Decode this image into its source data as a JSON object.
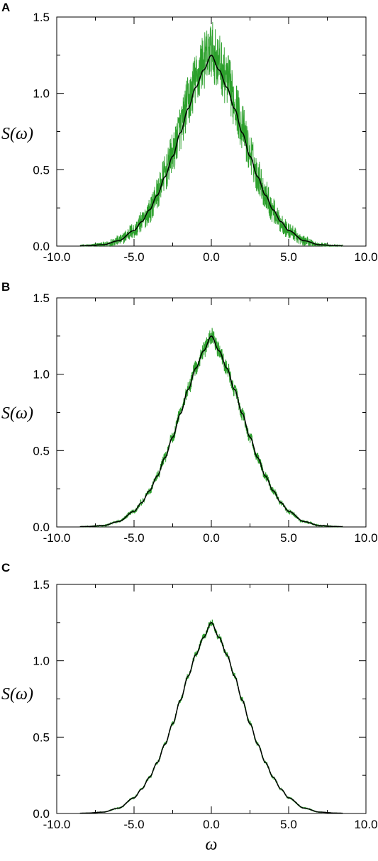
{
  "chart_data": [
    {
      "panel": "A",
      "type": "line",
      "ylabel": "S(ω)",
      "xlabel": "",
      "xlim": [
        -10.0,
        10.0
      ],
      "ylim": [
        0.0,
        1.5
      ],
      "x_ticks": [
        "-10.0",
        "-5.0",
        "0.0",
        "5.0",
        "10.0"
      ],
      "y_ticks": [
        "0.0",
        "0.5",
        "1.0",
        "1.5"
      ],
      "grid": false,
      "legend": "none",
      "series": [
        {
          "style": "noisy",
          "color": "#2ca02c",
          "x": [
            -8,
            -7,
            -6,
            -5,
            -4.5,
            -4,
            -3.5,
            -3,
            -2.5,
            -2,
            -1.5,
            -1,
            -0.5,
            0,
            0.5,
            1,
            1.5,
            2,
            2.5,
            3,
            3.5,
            4,
            4.5,
            5,
            6,
            7,
            8
          ],
          "y": [
            0.003,
            0.009,
            0.038,
            0.101,
            0.159,
            0.229,
            0.345,
            0.473,
            0.604,
            0.776,
            0.945,
            1.085,
            1.212,
            1.28,
            1.198,
            1.097,
            0.951,
            0.778,
            0.606,
            0.462,
            0.339,
            0.232,
            0.152,
            0.099,
            0.035,
            0.008,
            0.002
          ],
          "noise_amplitude": 0.12
        },
        {
          "style": "smooth",
          "color": "#000000",
          "x": [
            -8,
            -7,
            -6,
            -5,
            -4.5,
            -4,
            -3.5,
            -3,
            -2.5,
            -2,
            -1.5,
            -1,
            -0.5,
            0,
            0.5,
            1,
            1.5,
            2,
            2.5,
            3,
            3.5,
            4,
            4.5,
            5,
            6,
            7,
            8
          ],
          "y": [
            0.003,
            0.009,
            0.035,
            0.102,
            0.16,
            0.237,
            0.333,
            0.453,
            0.588,
            0.742,
            0.9,
            1.04,
            1.153,
            1.25,
            1.153,
            1.04,
            0.9,
            0.742,
            0.588,
            0.453,
            0.333,
            0.237,
            0.16,
            0.102,
            0.035,
            0.009,
            0.003
          ]
        }
      ]
    },
    {
      "panel": "B",
      "type": "line",
      "ylabel": "S(ω)",
      "xlabel": "",
      "xlim": [
        -10.0,
        10.0
      ],
      "ylim": [
        0.0,
        1.5
      ],
      "x_ticks": [
        "-10.0",
        "-5.0",
        "0.0",
        "5.0",
        "10.0"
      ],
      "y_ticks": [
        "0.0",
        "0.5",
        "1.0",
        "1.5"
      ],
      "grid": false,
      "legend": "none",
      "series": [
        {
          "style": "noisy",
          "color": "#2ca02c",
          "x": [
            -8,
            -7,
            -6,
            -5,
            -4.5,
            -4,
            -3.5,
            -3,
            -2.5,
            -2,
            -1.5,
            -1,
            -0.5,
            0,
            0.5,
            1,
            1.5,
            2,
            2.5,
            3,
            3.5,
            4,
            4.5,
            5,
            6,
            7,
            8
          ],
          "y": [
            0.003,
            0.009,
            0.036,
            0.101,
            0.161,
            0.236,
            0.335,
            0.455,
            0.59,
            0.745,
            0.902,
            1.043,
            1.156,
            1.255,
            1.157,
            1.04,
            0.899,
            0.74,
            0.586,
            0.451,
            0.331,
            0.236,
            0.159,
            0.101,
            0.035,
            0.009,
            0.003
          ],
          "noise_amplitude": 0.035
        },
        {
          "style": "smooth",
          "color": "#000000",
          "x": [
            -8,
            -7,
            -6,
            -5,
            -4.5,
            -4,
            -3.5,
            -3,
            -2.5,
            -2,
            -1.5,
            -1,
            -0.5,
            0,
            0.5,
            1,
            1.5,
            2,
            2.5,
            3,
            3.5,
            4,
            4.5,
            5,
            6,
            7,
            8
          ],
          "y": [
            0.003,
            0.009,
            0.035,
            0.102,
            0.16,
            0.237,
            0.333,
            0.453,
            0.588,
            0.742,
            0.9,
            1.04,
            1.153,
            1.25,
            1.153,
            1.04,
            0.9,
            0.742,
            0.588,
            0.453,
            0.333,
            0.237,
            0.16,
            0.102,
            0.035,
            0.009,
            0.003
          ]
        }
      ]
    },
    {
      "panel": "C",
      "type": "line",
      "ylabel": "S(ω)",
      "xlabel": "ω",
      "xlim": [
        -10.0,
        10.0
      ],
      "ylim": [
        0.0,
        1.5
      ],
      "x_ticks": [
        "-10.0",
        "-5.0",
        "0.0",
        "5.0",
        "10.0"
      ],
      "y_ticks": [
        "0.0",
        "0.5",
        "1.0",
        "1.5"
      ],
      "grid": false,
      "legend": "none",
      "series": [
        {
          "style": "noisy",
          "color": "#2ca02c",
          "x": [
            -8,
            -7,
            -6,
            -5,
            -4.5,
            -4,
            -3.5,
            -3,
            -2.5,
            -2,
            -1.5,
            -1,
            -0.5,
            0,
            0.5,
            1,
            1.5,
            2,
            2.5,
            3,
            3.5,
            4,
            4.5,
            5,
            6,
            7,
            8
          ],
          "y": [
            0.003,
            0.009,
            0.035,
            0.102,
            0.16,
            0.237,
            0.333,
            0.453,
            0.588,
            0.742,
            0.9,
            1.041,
            1.154,
            1.252,
            1.153,
            1.04,
            0.9,
            0.742,
            0.588,
            0.453,
            0.333,
            0.237,
            0.16,
            0.102,
            0.035,
            0.009,
            0.003
          ],
          "noise_amplitude": 0.015
        },
        {
          "style": "smooth",
          "color": "#000000",
          "x": [
            -8,
            -7,
            -6,
            -5,
            -4.5,
            -4,
            -3.5,
            -3,
            -2.5,
            -2,
            -1.5,
            -1,
            -0.5,
            0,
            0.5,
            1,
            1.5,
            2,
            2.5,
            3,
            3.5,
            4,
            4.5,
            5,
            6,
            7,
            8
          ],
          "y": [
            0.003,
            0.009,
            0.035,
            0.102,
            0.16,
            0.237,
            0.333,
            0.453,
            0.588,
            0.742,
            0.9,
            1.04,
            1.153,
            1.25,
            1.153,
            1.04,
            0.9,
            0.742,
            0.588,
            0.453,
            0.333,
            0.237,
            0.16,
            0.102,
            0.035,
            0.009,
            0.003
          ]
        }
      ]
    }
  ]
}
